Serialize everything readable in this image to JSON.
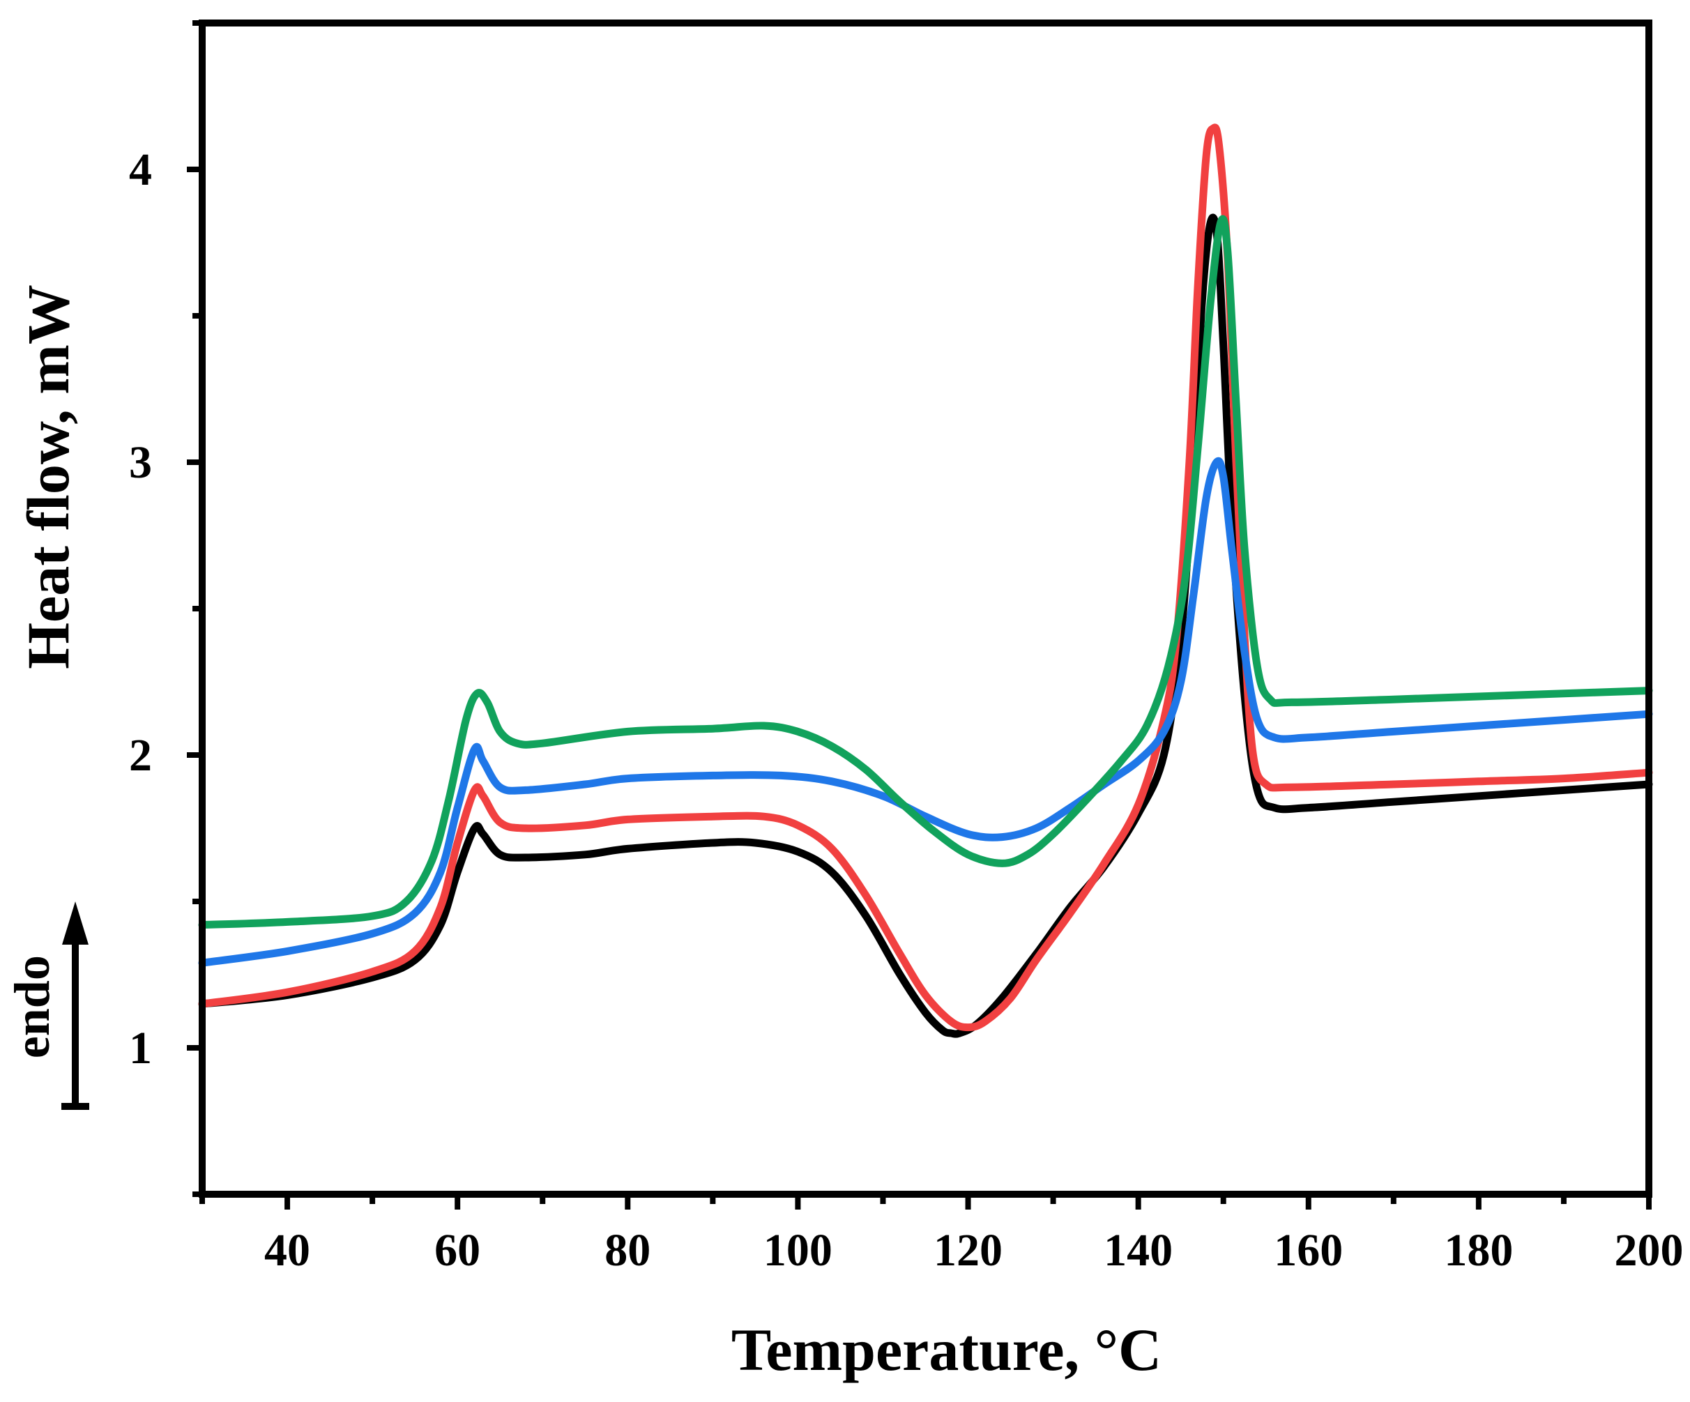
{
  "chart_data": {
    "type": "line",
    "title": "",
    "xlabel": "Temperature, °C",
    "ylabel": "Heat flow, mW",
    "xlim": [
      30,
      200
    ],
    "ylim": [
      0.5,
      4.5
    ],
    "x_ticks": [
      40,
      60,
      80,
      100,
      120,
      140,
      160,
      180,
      200
    ],
    "x_tick_labels": [
      "40",
      "60",
      "80",
      "100",
      "120",
      "140",
      "160",
      "180",
      "200"
    ],
    "y_ticks": [
      1,
      2,
      3,
      4
    ],
    "y_tick_labels": [
      "1",
      "2",
      "3",
      "4"
    ],
    "grid": false,
    "legend": "none",
    "annotation": {
      "text": "endo",
      "arrow_from": 0.8,
      "arrow_to": 1.5,
      "direction": "up"
    },
    "series": [
      {
        "name": "black",
        "color": "#000000",
        "points": [
          [
            30,
            1.15
          ],
          [
            40,
            1.18
          ],
          [
            50,
            1.24
          ],
          [
            55,
            1.3
          ],
          [
            58,
            1.42
          ],
          [
            60,
            1.6
          ],
          [
            62,
            1.75
          ],
          [
            63,
            1.73
          ],
          [
            65,
            1.66
          ],
          [
            68,
            1.65
          ],
          [
            75,
            1.66
          ],
          [
            80,
            1.68
          ],
          [
            90,
            1.7
          ],
          [
            95,
            1.7
          ],
          [
            100,
            1.67
          ],
          [
            104,
            1.6
          ],
          [
            108,
            1.45
          ],
          [
            112,
            1.25
          ],
          [
            115,
            1.12
          ],
          [
            117,
            1.06
          ],
          [
            118,
            1.05
          ],
          [
            119,
            1.05
          ],
          [
            121,
            1.08
          ],
          [
            124,
            1.17
          ],
          [
            128,
            1.32
          ],
          [
            132,
            1.48
          ],
          [
            136,
            1.62
          ],
          [
            140,
            1.8
          ],
          [
            143,
            2.0
          ],
          [
            145,
            2.4
          ],
          [
            146.5,
            3.0
          ],
          [
            147.5,
            3.55
          ],
          [
            148.5,
            3.82
          ],
          [
            149.3,
            3.76
          ],
          [
            150,
            3.4
          ],
          [
            151,
            2.8
          ],
          [
            152.5,
            2.2
          ],
          [
            154,
            1.88
          ],
          [
            156,
            1.82
          ],
          [
            160,
            1.82
          ],
          [
            170,
            1.84
          ],
          [
            180,
            1.86
          ],
          [
            190,
            1.88
          ],
          [
            200,
            1.9
          ]
        ]
      },
      {
        "name": "red",
        "color": "#f14040",
        "points": [
          [
            30,
            1.15
          ],
          [
            40,
            1.19
          ],
          [
            50,
            1.26
          ],
          [
            55,
            1.33
          ],
          [
            58,
            1.48
          ],
          [
            60,
            1.7
          ],
          [
            62,
            1.88
          ],
          [
            63,
            1.86
          ],
          [
            65,
            1.77
          ],
          [
            68,
            1.75
          ],
          [
            75,
            1.76
          ],
          [
            80,
            1.78
          ],
          [
            90,
            1.79
          ],
          [
            96,
            1.79
          ],
          [
            100,
            1.76
          ],
          [
            104,
            1.68
          ],
          [
            108,
            1.52
          ],
          [
            112,
            1.32
          ],
          [
            115,
            1.18
          ],
          [
            118,
            1.09
          ],
          [
            120,
            1.07
          ],
          [
            122,
            1.09
          ],
          [
            125,
            1.17
          ],
          [
            128,
            1.3
          ],
          [
            132,
            1.46
          ],
          [
            136,
            1.63
          ],
          [
            140,
            1.83
          ],
          [
            143,
            2.12
          ],
          [
            144.5,
            2.4
          ],
          [
            146,
            3.0
          ],
          [
            147,
            3.6
          ],
          [
            148,
            4.05
          ],
          [
            148.8,
            4.14
          ],
          [
            149.5,
            4.08
          ],
          [
            150.5,
            3.7
          ],
          [
            151.5,
            3.0
          ],
          [
            152.5,
            2.4
          ],
          [
            153.5,
            2.0
          ],
          [
            155,
            1.9
          ],
          [
            158,
            1.89
          ],
          [
            170,
            1.9
          ],
          [
            180,
            1.91
          ],
          [
            190,
            1.92
          ],
          [
            200,
            1.94
          ]
        ]
      },
      {
        "name": "blue",
        "color": "#1f77e8",
        "points": [
          [
            30,
            1.29
          ],
          [
            40,
            1.33
          ],
          [
            50,
            1.39
          ],
          [
            55,
            1.46
          ],
          [
            58,
            1.6
          ],
          [
            60,
            1.82
          ],
          [
            62,
            2.02
          ],
          [
            63,
            1.98
          ],
          [
            65,
            1.89
          ],
          [
            68,
            1.88
          ],
          [
            75,
            1.9
          ],
          [
            80,
            1.92
          ],
          [
            90,
            1.93
          ],
          [
            98,
            1.93
          ],
          [
            104,
            1.91
          ],
          [
            110,
            1.86
          ],
          [
            115,
            1.79
          ],
          [
            120,
            1.73
          ],
          [
            124,
            1.72
          ],
          [
            128,
            1.75
          ],
          [
            132,
            1.82
          ],
          [
            136,
            1.9
          ],
          [
            140,
            1.98
          ],
          [
            143,
            2.08
          ],
          [
            145,
            2.25
          ],
          [
            146.5,
            2.55
          ],
          [
            148,
            2.88
          ],
          [
            149.2,
            3.0
          ],
          [
            150,
            2.95
          ],
          [
            151,
            2.7
          ],
          [
            152.5,
            2.35
          ],
          [
            154,
            2.12
          ],
          [
            156,
            2.06
          ],
          [
            160,
            2.06
          ],
          [
            170,
            2.08
          ],
          [
            180,
            2.1
          ],
          [
            190,
            2.12
          ],
          [
            200,
            2.14
          ]
        ]
      },
      {
        "name": "green",
        "color": "#11a25c",
        "points": [
          [
            30,
            1.42
          ],
          [
            40,
            1.43
          ],
          [
            50,
            1.45
          ],
          [
            54,
            1.5
          ],
          [
            57,
            1.64
          ],
          [
            59,
            1.85
          ],
          [
            61,
            2.12
          ],
          [
            62.3,
            2.21
          ],
          [
            63.5,
            2.18
          ],
          [
            65,
            2.08
          ],
          [
            67,
            2.04
          ],
          [
            70,
            2.04
          ],
          [
            80,
            2.08
          ],
          [
            90,
            2.09
          ],
          [
            96,
            2.1
          ],
          [
            100,
            2.08
          ],
          [
            104,
            2.03
          ],
          [
            108,
            1.95
          ],
          [
            112,
            1.84
          ],
          [
            116,
            1.74
          ],
          [
            120,
            1.66
          ],
          [
            124,
            1.63
          ],
          [
            127,
            1.66
          ],
          [
            130,
            1.73
          ],
          [
            134,
            1.85
          ],
          [
            138,
            1.98
          ],
          [
            141,
            2.1
          ],
          [
            143.5,
            2.3
          ],
          [
            145.5,
            2.6
          ],
          [
            147,
            3.05
          ],
          [
            148.5,
            3.55
          ],
          [
            149.7,
            3.82
          ],
          [
            150.5,
            3.72
          ],
          [
            151.5,
            3.2
          ],
          [
            152.5,
            2.7
          ],
          [
            154,
            2.3
          ],
          [
            155.5,
            2.19
          ],
          [
            158,
            2.18
          ],
          [
            170,
            2.19
          ],
          [
            180,
            2.2
          ],
          [
            190,
            2.21
          ],
          [
            200,
            2.22
          ]
        ]
      }
    ]
  }
}
